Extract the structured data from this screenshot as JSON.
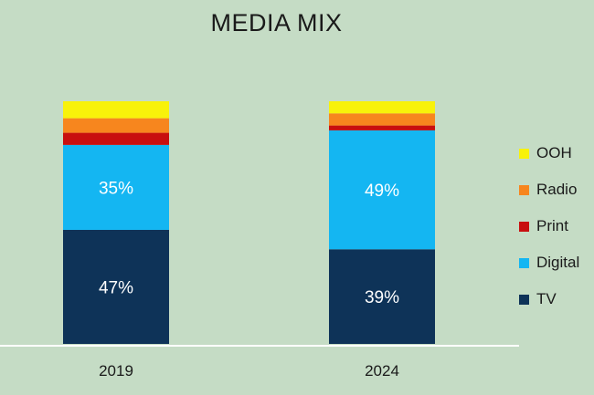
{
  "chart_data": {
    "type": "bar",
    "stacked": true,
    "title": "MEDIA MIX",
    "categories": [
      "2019",
      "2024"
    ],
    "series": [
      {
        "name": "TV",
        "values": [
          47,
          39
        ],
        "color": "#0e3358",
        "labels": [
          "47%",
          "39%"
        ]
      },
      {
        "name": "Digital",
        "values": [
          35,
          49
        ],
        "color": "#14b6f2",
        "labels": [
          "35%",
          "49%"
        ]
      },
      {
        "name": "Print",
        "values": [
          5,
          2
        ],
        "color": "#c80f0f",
        "labels": [
          "",
          ""
        ]
      },
      {
        "name": "Radio",
        "values": [
          6,
          5
        ],
        "color": "#f7861e",
        "labels": [
          "",
          ""
        ]
      },
      {
        "name": "OOH",
        "values": [
          7,
          5
        ],
        "color": "#f8f20a",
        "labels": [
          "",
          ""
        ]
      }
    ],
    "legend_order": [
      "OOH",
      "Radio",
      "Print",
      "Digital",
      "TV"
    ],
    "ylim": [
      0,
      100
    ],
    "xlabel": "",
    "ylabel": ""
  }
}
